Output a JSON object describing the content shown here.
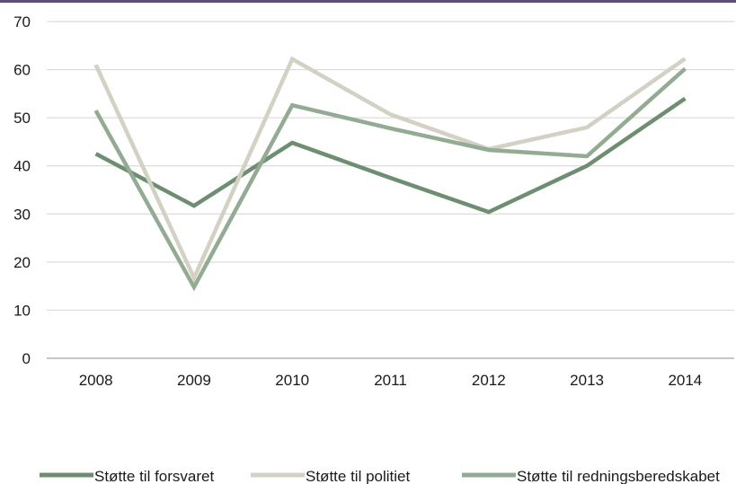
{
  "chart_data": {
    "type": "line",
    "categories": [
      "2008",
      "2009",
      "2010",
      "2011",
      "2012",
      "2013",
      "2014"
    ],
    "ylim": [
      0,
      70
    ],
    "yticks": [
      0,
      10,
      20,
      30,
      40,
      50,
      60,
      70
    ],
    "grid": true,
    "legend_position": "bottom",
    "series": [
      {
        "name": "Støtte til forsvaret",
        "color": "#6e8e72",
        "values": [
          42.5,
          31.7,
          44.8,
          37.5,
          30.4,
          40.0,
          54.0
        ]
      },
      {
        "name": "Støtte til politiet",
        "color": "#d3d0c4",
        "values": [
          61.0,
          16.7,
          62.2,
          50.7,
          43.5,
          48.0,
          62.3
        ]
      },
      {
        "name": "Støtte til redningsberedskabet",
        "color": "#93ab93",
        "values": [
          51.5,
          14.8,
          52.6,
          47.8,
          43.3,
          42.0,
          60.2
        ]
      }
    ]
  }
}
